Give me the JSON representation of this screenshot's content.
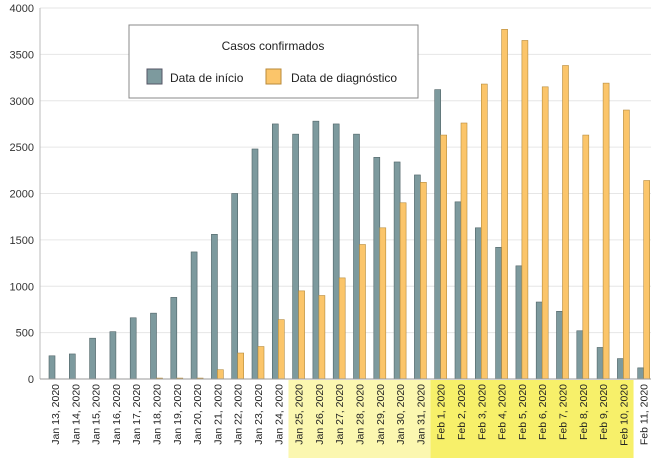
{
  "chart_data": {
    "type": "bar",
    "title": "",
    "xlabel": "",
    "ylabel": "",
    "ylim": [
      0,
      4000
    ],
    "yticks": [
      0,
      500,
      1000,
      1500,
      2000,
      2500,
      3000,
      3500,
      4000
    ],
    "grid": true,
    "legend": {
      "title": "Casos confirmados",
      "placement": "top-center"
    },
    "categories": [
      "Jan 13, 2020",
      "Jan 14, 2020",
      "Jan 15, 2020",
      "Jan 16, 2020",
      "Jan 17, 2020",
      "Jan 18, 2020",
      "Jan 19, 2020",
      "Jan 20, 2020",
      "Jan 21, 2020",
      "Jan 22, 2020",
      "Jan 23, 2020",
      "Jan 24, 2020",
      "Jan 25, 2020",
      "Jan 26, 2020",
      "Jan 27, 2020",
      "Jan 28, 2020",
      "Jan 29, 2020",
      "Jan 30, 2020",
      "Jan 31, 2020",
      "Feb 1, 2020",
      "Feb 2, 2020",
      "Feb 3, 2020",
      "Feb 4, 2020",
      "Feb 5, 2020",
      "Feb 6, 2020",
      "Feb 7, 2020",
      "Feb 8, 2020",
      "Feb 9, 2020",
      "Feb 10, 2020",
      "Feb 11, 2020"
    ],
    "highlight": {
      "light": [
        "Jan 25, 2020",
        "Jan 31, 2020"
      ],
      "strong": [
        "Feb 1, 2020",
        "Feb 10, 2020"
      ],
      "light_color": "#fbf7b0",
      "strong_color": "#f7f06a"
    },
    "series": [
      {
        "name": "Data de início",
        "color": "#7d9a9e",
        "values": [
          250,
          270,
          440,
          510,
          660,
          710,
          880,
          1370,
          1560,
          2000,
          2480,
          2750,
          2640,
          2780,
          2750,
          2640,
          2390,
          2340,
          2200,
          3120,
          1910,
          1630,
          1420,
          1220,
          830,
          730,
          520,
          340,
          220,
          120
        ]
      },
      {
        "name": "Data de diagnóstico",
        "color": "#fbc56a",
        "values": [
          0,
          0,
          0,
          0,
          0,
          10,
          10,
          10,
          100,
          280,
          350,
          640,
          950,
          900,
          1090,
          1450,
          1630,
          1900,
          2120,
          2630,
          2760,
          3180,
          3770,
          3650,
          3150,
          3380,
          2630,
          3190,
          2900,
          2140
        ]
      }
    ]
  }
}
